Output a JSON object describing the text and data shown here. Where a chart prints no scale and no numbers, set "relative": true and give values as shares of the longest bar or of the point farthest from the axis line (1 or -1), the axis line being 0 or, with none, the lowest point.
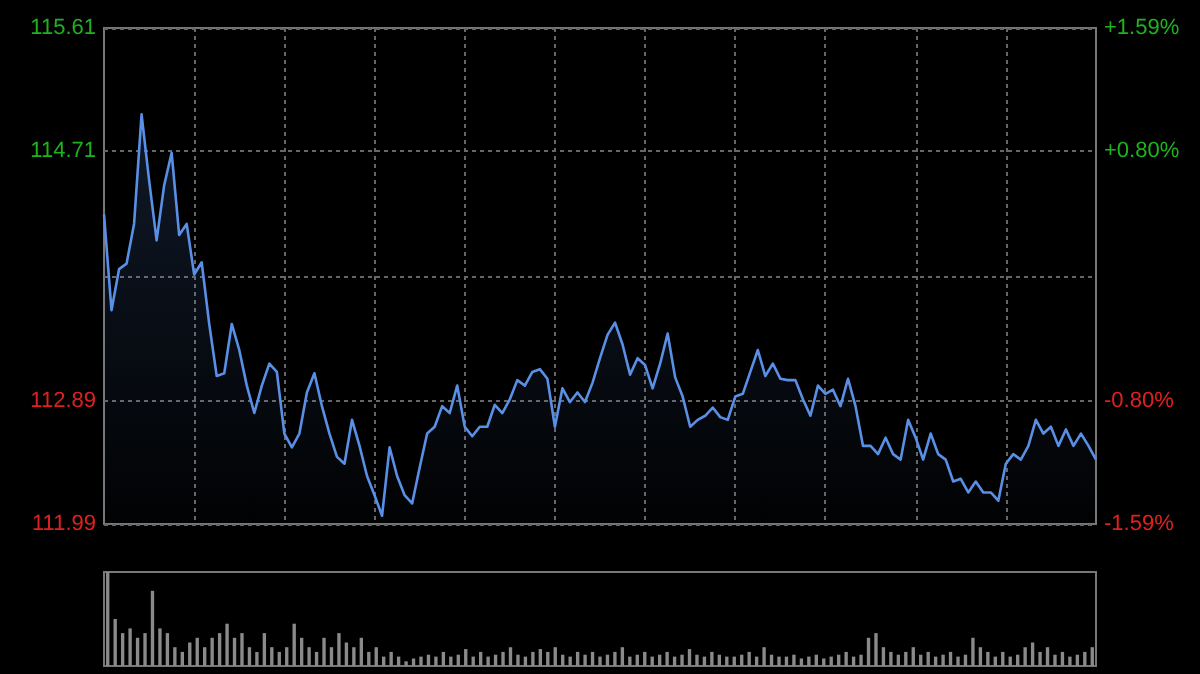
{
  "chart_data": [
    {
      "type": "area",
      "color": "#5a8fe6",
      "grid": true,
      "tick_labels": "y",
      "categories": [
        null,
        null,
        null,
        null,
        null,
        null,
        null,
        null,
        null,
        null,
        null,
        null,
        null,
        null,
        null,
        null,
        null,
        null,
        null,
        null,
        null,
        null,
        null,
        null,
        null,
        null,
        null,
        null,
        null,
        null,
        null,
        null,
        null,
        null,
        null,
        null,
        null,
        null,
        null,
        null,
        null,
        null,
        null,
        null,
        null,
        null,
        null,
        null,
        null,
        null,
        null,
        null,
        null,
        null,
        null,
        null,
        null,
        null,
        null,
        null,
        null,
        null,
        null,
        null,
        null,
        null,
        null,
        null,
        null,
        null,
        null,
        null,
        null,
        null,
        null,
        null,
        null,
        null,
        null,
        null,
        null,
        null,
        null,
        null,
        null,
        null,
        null,
        null,
        null,
        null,
        null,
        null,
        null,
        null,
        null,
        null,
        null,
        null,
        null,
        null,
        null,
        null,
        null,
        null,
        null,
        null,
        null,
        null,
        null,
        null,
        null,
        null,
        null,
        null,
        null,
        null,
        null,
        null,
        null,
        null,
        null,
        null,
        null,
        null,
        null,
        null,
        null,
        null,
        null,
        null,
        null,
        null,
        null
      ],
      "values": [
        114.25,
        113.55,
        113.85,
        113.89,
        114.18,
        114.98,
        114.5,
        114.06,
        114.46,
        114.7,
        114.1,
        114.18,
        113.81,
        113.9,
        113.45,
        113.07,
        113.09,
        113.45,
        113.26,
        113.0,
        112.8,
        113.0,
        113.16,
        113.1,
        112.65,
        112.55,
        112.65,
        112.95,
        113.09,
        112.85,
        112.65,
        112.48,
        112.43,
        112.75,
        112.56,
        112.34,
        112.2,
        112.05,
        112.55,
        112.34,
        112.2,
        112.14,
        112.4,
        112.65,
        112.7,
        112.85,
        112.8,
        113.0,
        112.7,
        112.63,
        112.7,
        112.7,
        112.86,
        112.8,
        112.9,
        113.04,
        113.0,
        113.1,
        113.12,
        113.05,
        112.7,
        112.98,
        112.88,
        112.95,
        112.88,
        113.02,
        113.2,
        113.37,
        113.46,
        113.3,
        113.08,
        113.2,
        113.15,
        112.98,
        113.16,
        113.38,
        113.06,
        112.92,
        112.7,
        112.75,
        112.78,
        112.84,
        112.77,
        112.75,
        112.92,
        112.94,
        113.1,
        113.26,
        113.07,
        113.16,
        113.05,
        113.04,
        113.04,
        112.9,
        112.78,
        113.0,
        112.94,
        112.97,
        112.85,
        113.05,
        112.85,
        112.56,
        112.56,
        112.5,
        112.62,
        112.5,
        112.46,
        112.75,
        112.62,
        112.46,
        112.65,
        112.5,
        112.46,
        112.3,
        112.32,
        112.22,
        112.3,
        112.22,
        112.22,
        112.16,
        112.43,
        112.5,
        112.46,
        112.56,
        112.75,
        112.65,
        112.7,
        112.56,
        112.68,
        112.56,
        112.65,
        112.56,
        112.46
      ],
      "ylim": [
        111.99,
        115.61
      ],
      "yticks": [
        111.99,
        112.89,
        {
          "value": 113.8,
          "label": null
        },
        114.71,
        115.61
      ],
      "y2lim": [
        -1.59,
        1.59
      ],
      "y2ticks": [
        {
          "value": -1.59,
          "label": "-1.59%"
        },
        {
          "value": -0.8,
          "label": "-0.80%"
        },
        {
          "value": 0,
          "label": null
        },
        {
          "value": 0.8,
          "label": "+0.80%"
        },
        {
          "value": 1.59,
          "label": "+1.59%"
        }
      ]
    },
    {
      "type": "bar",
      "relative": true,
      "color": "#8a8a8a",
      "tick_labels": false,
      "categories": [
        null,
        null,
        null,
        null,
        null,
        null,
        null,
        null,
        null,
        null,
        null,
        null,
        null,
        null,
        null,
        null,
        null,
        null,
        null,
        null,
        null,
        null,
        null,
        null,
        null,
        null,
        null,
        null,
        null,
        null,
        null,
        null,
        null,
        null,
        null,
        null,
        null,
        null,
        null,
        null,
        null,
        null,
        null,
        null,
        null,
        null,
        null,
        null,
        null,
        null,
        null,
        null,
        null,
        null,
        null,
        null,
        null,
        null,
        null,
        null,
        null,
        null,
        null,
        null,
        null,
        null,
        null,
        null,
        null,
        null,
        null,
        null,
        null,
        null,
        null,
        null,
        null,
        null,
        null,
        null,
        null,
        null,
        null,
        null,
        null,
        null,
        null,
        null,
        null,
        null,
        null,
        null,
        null,
        null,
        null,
        null,
        null,
        null,
        null,
        null,
        null,
        null,
        null,
        null,
        null,
        null,
        null,
        null,
        null,
        null,
        null,
        null,
        null,
        null,
        null,
        null,
        null,
        null,
        null,
        null,
        null,
        null,
        null,
        null,
        null,
        null,
        null,
        null,
        null,
        null,
        null,
        null,
        null
      ],
      "values": [
        1.0,
        0.5,
        0.35,
        0.4,
        0.3,
        0.35,
        0.8,
        0.4,
        0.35,
        0.2,
        0.15,
        0.25,
        0.3,
        0.2,
        0.3,
        0.35,
        0.45,
        0.3,
        0.35,
        0.2,
        0.15,
        0.35,
        0.2,
        0.15,
        0.2,
        0.45,
        0.3,
        0.2,
        0.15,
        0.3,
        0.2,
        0.35,
        0.25,
        0.2,
        0.3,
        0.15,
        0.2,
        0.1,
        0.15,
        0.1,
        0.05,
        0.08,
        0.1,
        0.12,
        0.1,
        0.15,
        0.1,
        0.12,
        0.18,
        0.1,
        0.15,
        0.1,
        0.12,
        0.15,
        0.2,
        0.12,
        0.1,
        0.15,
        0.18,
        0.15,
        0.2,
        0.12,
        0.1,
        0.15,
        0.12,
        0.15,
        0.1,
        0.12,
        0.15,
        0.2,
        0.1,
        0.12,
        0.15,
        0.1,
        0.12,
        0.15,
        0.1,
        0.12,
        0.18,
        0.12,
        0.1,
        0.15,
        0.12,
        0.1,
        0.1,
        0.12,
        0.15,
        0.1,
        0.2,
        0.12,
        0.1,
        0.1,
        0.12,
        0.08,
        0.1,
        0.12,
        0.08,
        0.1,
        0.12,
        0.15,
        0.1,
        0.12,
        0.3,
        0.35,
        0.2,
        0.15,
        0.12,
        0.15,
        0.2,
        0.12,
        0.15,
        0.1,
        0.12,
        0.15,
        0.1,
        0.12,
        0.3,
        0.2,
        0.15,
        0.1,
        0.15,
        0.1,
        0.12,
        0.2,
        0.25,
        0.15,
        0.2,
        0.12,
        0.15,
        0.1,
        0.12,
        0.15,
        0.2
      ]
    }
  ]
}
